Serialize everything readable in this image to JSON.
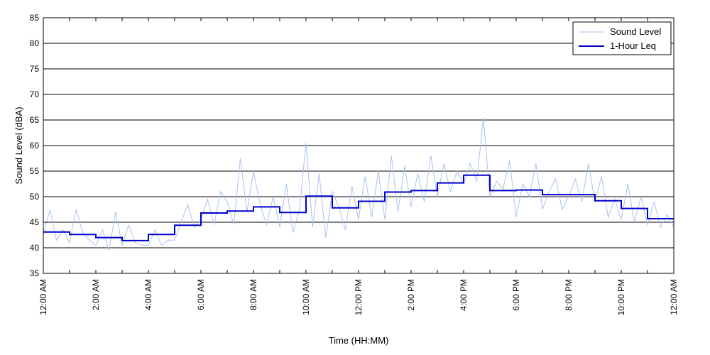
{
  "chart_data": {
    "type": "line",
    "title": "",
    "xlabel": "Time (HH:MM)",
    "ylabel": "Sound Level (dBA)",
    "ylim": [
      35,
      85
    ],
    "xlim": [
      0,
      24
    ],
    "x_unit": "hours after 12:00 AM",
    "grid": "horizontal",
    "legend_position": "top-right",
    "yticks": [
      35,
      40,
      45,
      50,
      55,
      60,
      65,
      70,
      75,
      80,
      85
    ],
    "xticks": [
      {
        "hour": 0,
        "label": "12:00 AM"
      },
      {
        "hour": 2,
        "label": "2:00 AM"
      },
      {
        "hour": 4,
        "label": "4:00 AM"
      },
      {
        "hour": 6,
        "label": "6:00 AM"
      },
      {
        "hour": 8,
        "label": "8:00 AM"
      },
      {
        "hour": 10,
        "label": "10:00 AM"
      },
      {
        "hour": 12,
        "label": "12:00 PM"
      },
      {
        "hour": 14,
        "label": "2:00 PM"
      },
      {
        "hour": 16,
        "label": "4:00 PM"
      },
      {
        "hour": 18,
        "label": "6:00 PM"
      },
      {
        "hour": 20,
        "label": "8:00 PM"
      },
      {
        "hour": 22,
        "label": "10:00 PM"
      },
      {
        "hour": 24,
        "label": "12:00 AM"
      }
    ],
    "minor_xticks": [
      1,
      3,
      5,
      7,
      9,
      11,
      13,
      15,
      17,
      19,
      21,
      23
    ],
    "series": [
      {
        "name": "Sound Level",
        "color": "#a9c3ef",
        "x": [
          0.0,
          0.25,
          0.5,
          0.75,
          1.0,
          1.25,
          1.5,
          1.75,
          2.0,
          2.25,
          2.5,
          2.75,
          3.0,
          3.25,
          3.5,
          3.75,
          4.0,
          4.25,
          4.5,
          4.75,
          5.0,
          5.25,
          5.5,
          5.75,
          6.0,
          6.25,
          6.5,
          6.75,
          7.0,
          7.25,
          7.5,
          7.75,
          8.0,
          8.25,
          8.5,
          8.75,
          9.0,
          9.25,
          9.5,
          9.75,
          10.0,
          10.25,
          10.5,
          10.75,
          11.0,
          11.25,
          11.5,
          11.75,
          12.0,
          12.25,
          12.5,
          12.75,
          13.0,
          13.25,
          13.5,
          13.75,
          14.0,
          14.25,
          14.5,
          14.75,
          15.0,
          15.25,
          15.5,
          15.75,
          16.0,
          16.25,
          16.5,
          16.75,
          17.0,
          17.25,
          17.5,
          17.75,
          18.0,
          18.25,
          18.5,
          18.75,
          19.0,
          19.25,
          19.5,
          19.75,
          20.0,
          20.25,
          20.5,
          20.75,
          21.0,
          21.25,
          21.5,
          21.75,
          22.0,
          22.25,
          22.5,
          22.75,
          23.0,
          23.25,
          23.5,
          23.75,
          24.0
        ],
        "y": [
          42.5,
          47.5,
          41.5,
          43.5,
          41.0,
          47.5,
          43.0,
          41.5,
          40.5,
          43.5,
          39.5,
          47.0,
          40.5,
          44.5,
          41.0,
          40.5,
          40.5,
          43.5,
          40.5,
          41.5,
          41.5,
          45.0,
          48.5,
          44.0,
          45.5,
          49.5,
          44.5,
          51.0,
          49.0,
          44.5,
          57.5,
          47.0,
          55.0,
          48.5,
          44.5,
          50.0,
          44.0,
          52.5,
          43.0,
          47.5,
          60.5,
          44.0,
          54.5,
          42.0,
          51.0,
          48.0,
          43.5,
          52.0,
          45.5,
          54.0,
          46.0,
          55.0,
          45.5,
          58.0,
          47.0,
          56.0,
          48.0,
          54.5,
          49.0,
          58.0,
          50.0,
          56.5,
          51.0,
          55.0,
          52.5,
          56.5,
          53.0,
          65.5,
          50.0,
          53.0,
          51.5,
          57.0,
          46.0,
          52.5,
          50.0,
          56.5,
          47.5,
          51.0,
          53.5,
          47.5,
          50.0,
          53.5,
          49.0,
          56.5,
          49.0,
          54.0,
          46.0,
          49.5,
          45.5,
          52.5,
          45.0,
          50.0,
          44.5,
          49.0,
          44.0,
          46.5,
          44.0
        ]
      },
      {
        "name": "1-Hour Leq",
        "color": "#0000cc",
        "step": true,
        "x": [
          0,
          1,
          2,
          3,
          4,
          5,
          6,
          7,
          8,
          9,
          10,
          11,
          12,
          13,
          14,
          15,
          16,
          17,
          18,
          19,
          20,
          21,
          22,
          23
        ],
        "values": [
          43.1,
          42.6,
          42.0,
          41.4,
          42.6,
          44.4,
          46.8,
          47.2,
          48.0,
          46.9,
          50.1,
          47.8,
          49.1,
          50.9,
          51.2,
          52.7,
          54.2,
          51.2,
          51.3,
          50.4,
          50.4,
          49.2,
          47.7,
          45.7
        ]
      }
    ]
  }
}
